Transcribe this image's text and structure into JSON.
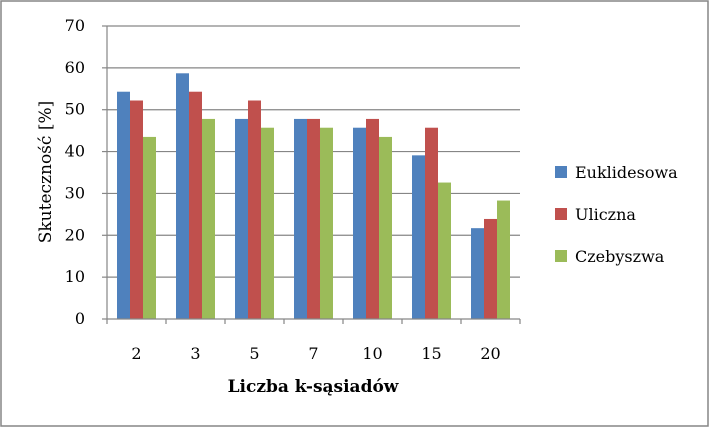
{
  "chart_data": {
    "type": "bar",
    "title": "",
    "xlabel": "Liczba k-sąsiadów",
    "ylabel": "Skuteczność [%]",
    "ylim": [
      0,
      70
    ],
    "yticks": [
      "0",
      "10",
      "20",
      "30",
      "40",
      "50",
      "60",
      "70"
    ],
    "grid": true,
    "legend_position": "right",
    "categories": [
      "2",
      "3",
      "5",
      "7",
      "10",
      "15",
      "20"
    ],
    "series": [
      {
        "name": "Euklidesowa",
        "color": "#4f81bd",
        "values": [
          54.3,
          58.7,
          47.8,
          47.8,
          45.7,
          39.1,
          21.7
        ]
      },
      {
        "name": "Uliczna",
        "color": "#c0504d",
        "values": [
          52.2,
          54.3,
          52.2,
          47.8,
          47.8,
          45.7,
          23.9
        ]
      },
      {
        "name": "Czebyszwa",
        "color": "#9bbb59",
        "values": [
          43.5,
          47.8,
          45.7,
          45.7,
          43.5,
          32.6,
          28.3
        ]
      }
    ]
  }
}
